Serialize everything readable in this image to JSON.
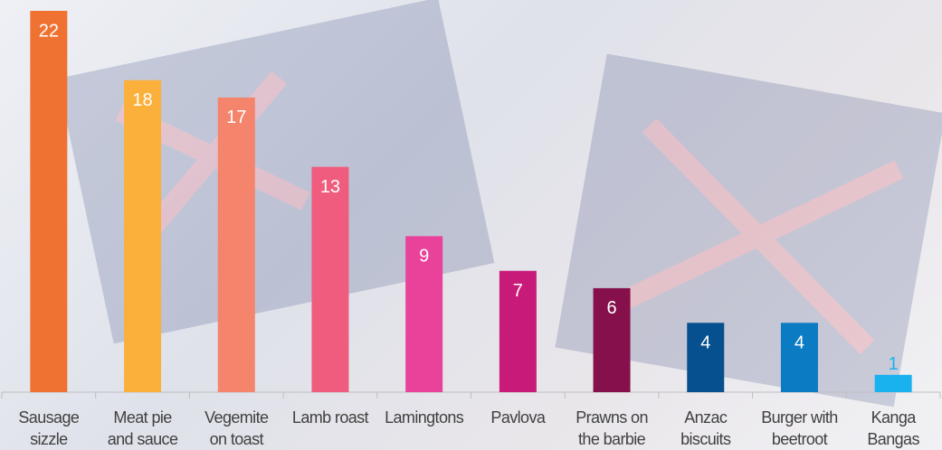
{
  "chart_data": {
    "type": "bar",
    "categories": [
      "Sausage sizzle",
      "Meat pie and sauce",
      "Vegemite on toast",
      "Lamb roast",
      "Lamingtons",
      "Pavlova",
      "Prawns on the barbie",
      "Anzac biscuits",
      "Burger with beetroot",
      "Kanga Bangas"
    ],
    "values": [
      22,
      18,
      17,
      13,
      9,
      7,
      6,
      4,
      4,
      1
    ],
    "colors": [
      "#f07232",
      "#fbb03b",
      "#f4846b",
      "#ef5c7d",
      "#e8429a",
      "#c81a79",
      "#85104c",
      "#07508f",
      "#0b7bc4",
      "#1ab1ef"
    ],
    "ylim": [
      0,
      22
    ]
  }
}
